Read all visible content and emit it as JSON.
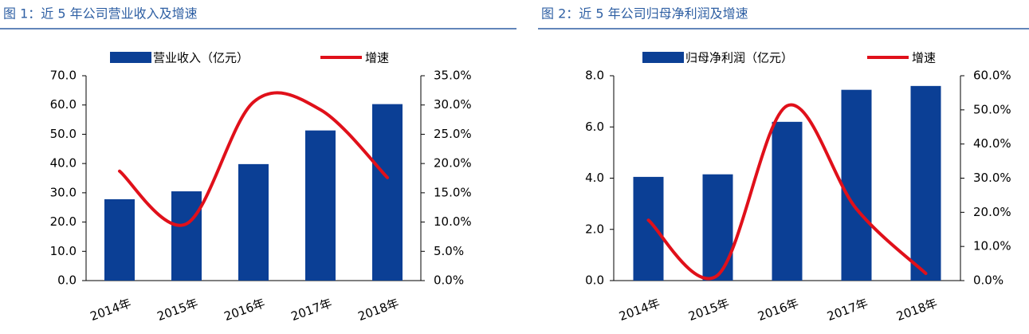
{
  "chart_data": [
    {
      "type": "combo",
      "title": "图 1：近 5 年公司营业收入及增速",
      "categories": [
        "2014年",
        "2015年",
        "2016年",
        "2017年",
        "2018年"
      ],
      "series": [
        {
          "name": "营业收入（亿元）",
          "color": "#0b3f95",
          "mark": "bar",
          "values": [
            27.8,
            30.5,
            39.8,
            51.3,
            60.3
          ]
        },
        {
          "name": "增速",
          "color": "#e0101a",
          "mark": "line",
          "axis": "y2",
          "values": [
            18.7,
            9.7,
            30.5,
            29.2,
            17.6
          ]
        }
      ],
      "ylim": [
        0,
        70
      ],
      "yticks": [
        {
          "value": 0,
          "label": "0.0"
        },
        {
          "value": 10,
          "label": "10.0"
        },
        {
          "value": 20,
          "label": "20.0"
        },
        {
          "value": 30,
          "label": "30.0"
        },
        {
          "value": 40,
          "label": "40.0"
        },
        {
          "value": 50,
          "label": "50.0"
        },
        {
          "value": 60,
          "label": "60.0"
        },
        {
          "value": 70,
          "label": "70.0"
        }
      ],
      "y2lim": [
        0,
        35
      ],
      "y2ticks": [
        {
          "value": 0,
          "label": "0.0%"
        },
        {
          "value": 5,
          "label": "5.0%"
        },
        {
          "value": 10,
          "label": "10.0%"
        },
        {
          "value": 15,
          "label": "15.0%"
        },
        {
          "value": 20,
          "label": "20.0%"
        },
        {
          "value": 25,
          "label": "25.0%"
        },
        {
          "value": 30,
          "label": "30.0%"
        },
        {
          "value": 35,
          "label": "35.0%"
        }
      ]
    },
    {
      "type": "combo",
      "title": "图 2：近 5 年公司归母净利润及增速",
      "categories": [
        "2014年",
        "2015年",
        "2016年",
        "2017年",
        "2018年"
      ],
      "series": [
        {
          "name": "归母净利润（亿元）",
          "color": "#0b3f95",
          "mark": "bar",
          "values": [
            4.05,
            4.15,
            6.2,
            7.45,
            7.6
          ]
        },
        {
          "name": "增速",
          "color": "#e0101a",
          "mark": "line",
          "axis": "y2",
          "values": [
            17.7,
            1.6,
            51.2,
            21,
            2.1
          ]
        }
      ],
      "ylim": [
        0,
        8
      ],
      "yticks": [
        {
          "value": 0,
          "label": "0.0"
        },
        {
          "value": 2,
          "label": "2.0"
        },
        {
          "value": 4,
          "label": "4.0"
        },
        {
          "value": 6,
          "label": "6.0"
        },
        {
          "value": 8,
          "label": "8.0"
        }
      ],
      "y2lim": [
        0,
        60
      ],
      "y2ticks": [
        {
          "value": 0,
          "label": "0.0%"
        },
        {
          "value": 10,
          "label": "10.0%"
        },
        {
          "value": 20,
          "label": "20.0%"
        },
        {
          "value": 30,
          "label": "30.0%"
        },
        {
          "value": 40,
          "label": "40.0%"
        },
        {
          "value": 50,
          "label": "50.0%"
        },
        {
          "value": 60,
          "label": "60.0%"
        }
      ]
    }
  ]
}
